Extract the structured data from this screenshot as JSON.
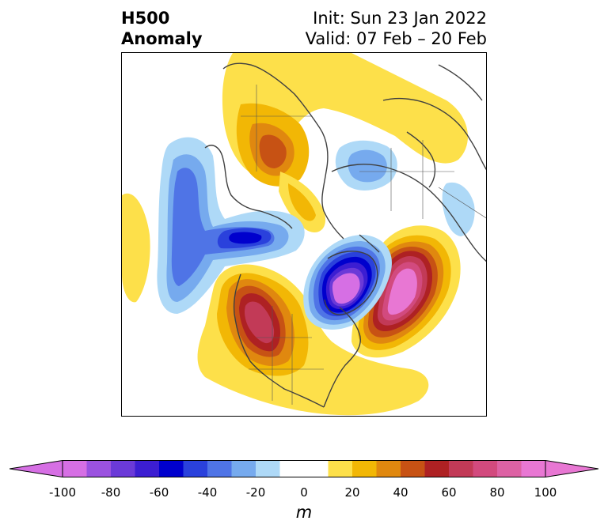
{
  "title": {
    "left_line1": "H500",
    "left_line2": "Anomaly",
    "right_line1": "Init: Sun 23 Jan 2022",
    "right_line2": "Valid: 07 Feb – 20 Feb"
  },
  "colorbar": {
    "unit": "m",
    "min": -100,
    "max": 100,
    "step": 10,
    "ticks": [
      {
        "value": -100,
        "label": "-100"
      },
      {
        "value": -80,
        "label": "-80"
      },
      {
        "value": -60,
        "label": "-60"
      },
      {
        "value": -40,
        "label": "-40"
      },
      {
        "value": -20,
        "label": "-20"
      },
      {
        "value": 0,
        "label": "0"
      },
      {
        "value": 20,
        "label": "20"
      },
      {
        "value": 40,
        "label": "40"
      },
      {
        "value": 60,
        "label": "60"
      },
      {
        "value": 80,
        "label": "80"
      },
      {
        "value": 100,
        "label": "100"
      }
    ],
    "colors": [
      "#d66fe4",
      "#9b52e0",
      "#6b3ad8",
      "#3c1ed2",
      "#0000cd",
      "#2a41dc",
      "#4f74e6",
      "#76aaee",
      "#aed9f7",
      "#ffffff",
      "#ffffff",
      "#fde04a",
      "#f2b705",
      "#e0880f",
      "#c75214",
      "#ae2123",
      "#c23a57",
      "#d24a7e",
      "#dd62a4",
      "#e877d3"
    ],
    "under_color": "#d66fe4",
    "over_color": "#e877d3"
  },
  "map": {
    "region": "Northern Hemisphere polar stereographic",
    "features": [
      {
        "name": "western-north-america-ridge",
        "sign": "positive",
        "peak": 60
      },
      {
        "name": "north-atlantic-ridge",
        "sign": "positive",
        "peak": 100
      },
      {
        "name": "baffin-greenland-trough",
        "sign": "negative",
        "peak": -100
      },
      {
        "name": "north-pacific-trough",
        "sign": "negative",
        "peak": -50
      },
      {
        "name": "aleutian-trough",
        "sign": "negative",
        "peak": -40
      },
      {
        "name": "siberian-ridge",
        "sign": "positive",
        "peak": 50
      },
      {
        "name": "eurasia-trough",
        "sign": "negative",
        "peak": -25
      }
    ]
  }
}
